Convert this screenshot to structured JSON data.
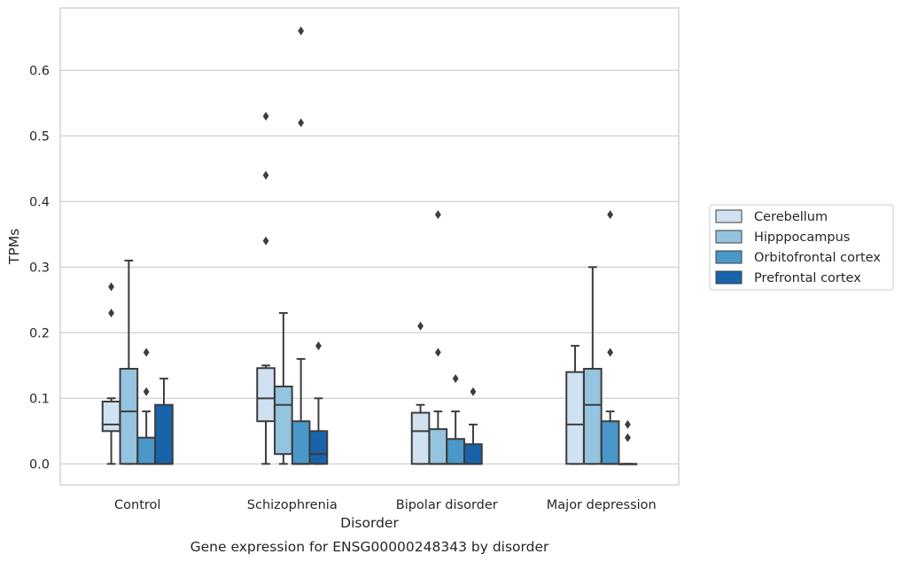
{
  "chart_data": {
    "type": "boxplot",
    "title": "",
    "caption": "Gene expression for ENSG00000248343 by disorder",
    "xlabel": "Disorder",
    "ylabel": "TPMs",
    "ylim": [
      -0.032,
      0.695
    ],
    "yticks": [
      0.0,
      0.1,
      0.2,
      0.3,
      0.4,
      0.5,
      0.6
    ],
    "ytick_labels": [
      "0.0",
      "0.1",
      "0.2",
      "0.3",
      "0.4",
      "0.5",
      "0.6"
    ],
    "grid": "horizontal",
    "legend_position": "right",
    "categories": [
      "Control",
      "Schizophrenia",
      "Bipolar disorder",
      "Major depression"
    ],
    "series": [
      {
        "name": "Cerebellum",
        "color": "#d0e1f2",
        "boxes": [
          {
            "whisker_low": 0.0,
            "q1": 0.05,
            "median": 0.06,
            "q3": 0.095,
            "whisker_high": 0.1,
            "outliers": [
              0.23,
              0.27
            ]
          },
          {
            "whisker_low": 0.0,
            "q1": 0.065,
            "median": 0.1,
            "q3": 0.146,
            "whisker_high": 0.15,
            "outliers": [
              0.34,
              0.44,
              0.53
            ]
          },
          {
            "whisker_low": 0.0,
            "q1": 0.0,
            "median": 0.05,
            "q3": 0.078,
            "whisker_high": 0.09,
            "outliers": [
              0.21
            ]
          },
          {
            "whisker_low": 0.0,
            "q1": 0.0,
            "median": 0.06,
            "q3": 0.14,
            "whisker_high": 0.18,
            "outliers": []
          }
        ]
      },
      {
        "name": "Hipppocampus",
        "color": "#94c4df",
        "boxes": [
          {
            "whisker_low": 0.0,
            "q1": 0.0,
            "median": 0.08,
            "q3": 0.145,
            "whisker_high": 0.31,
            "outliers": []
          },
          {
            "whisker_low": 0.0,
            "q1": 0.015,
            "median": 0.09,
            "q3": 0.118,
            "whisker_high": 0.23,
            "outliers": []
          },
          {
            "whisker_low": 0.0,
            "q1": 0.0,
            "median": 0.0,
            "q3": 0.053,
            "whisker_high": 0.08,
            "outliers": [
              0.17,
              0.38
            ]
          },
          {
            "whisker_low": 0.0,
            "q1": 0.0,
            "median": 0.09,
            "q3": 0.145,
            "whisker_high": 0.3,
            "outliers": []
          }
        ]
      },
      {
        "name": "Orbitofrontal cortex",
        "color": "#4a98c9",
        "boxes": [
          {
            "whisker_low": 0.0,
            "q1": 0.0,
            "median": 0.0,
            "q3": 0.04,
            "whisker_high": 0.08,
            "outliers": [
              0.11,
              0.17
            ]
          },
          {
            "whisker_low": 0.0,
            "q1": 0.0,
            "median": 0.0,
            "q3": 0.065,
            "whisker_high": 0.16,
            "outliers": [
              0.52,
              0.66
            ]
          },
          {
            "whisker_low": 0.0,
            "q1": 0.0,
            "median": 0.0,
            "q3": 0.038,
            "whisker_high": 0.08,
            "outliers": [
              0.13
            ]
          },
          {
            "whisker_low": 0.0,
            "q1": 0.0,
            "median": 0.0,
            "q3": 0.065,
            "whisker_high": 0.08,
            "outliers": [
              0.17,
              0.38
            ]
          }
        ]
      },
      {
        "name": "Prefrontal cortex",
        "color": "#1764ab",
        "boxes": [
          {
            "whisker_low": 0.0,
            "q1": 0.0,
            "median": 0.0,
            "q3": 0.09,
            "whisker_high": 0.13,
            "outliers": []
          },
          {
            "whisker_low": 0.0,
            "q1": 0.0,
            "median": 0.015,
            "q3": 0.05,
            "whisker_high": 0.1,
            "outliers": [
              0.18
            ]
          },
          {
            "whisker_low": 0.0,
            "q1": 0.0,
            "median": 0.0,
            "q3": 0.03,
            "whisker_high": 0.06,
            "outliers": [
              0.11
            ]
          },
          {
            "whisker_low": 0.0,
            "q1": 0.0,
            "median": 0.0,
            "q3": 0.0,
            "whisker_high": 0.0,
            "outliers": [
              0.04,
              0.06
            ]
          }
        ]
      }
    ]
  }
}
